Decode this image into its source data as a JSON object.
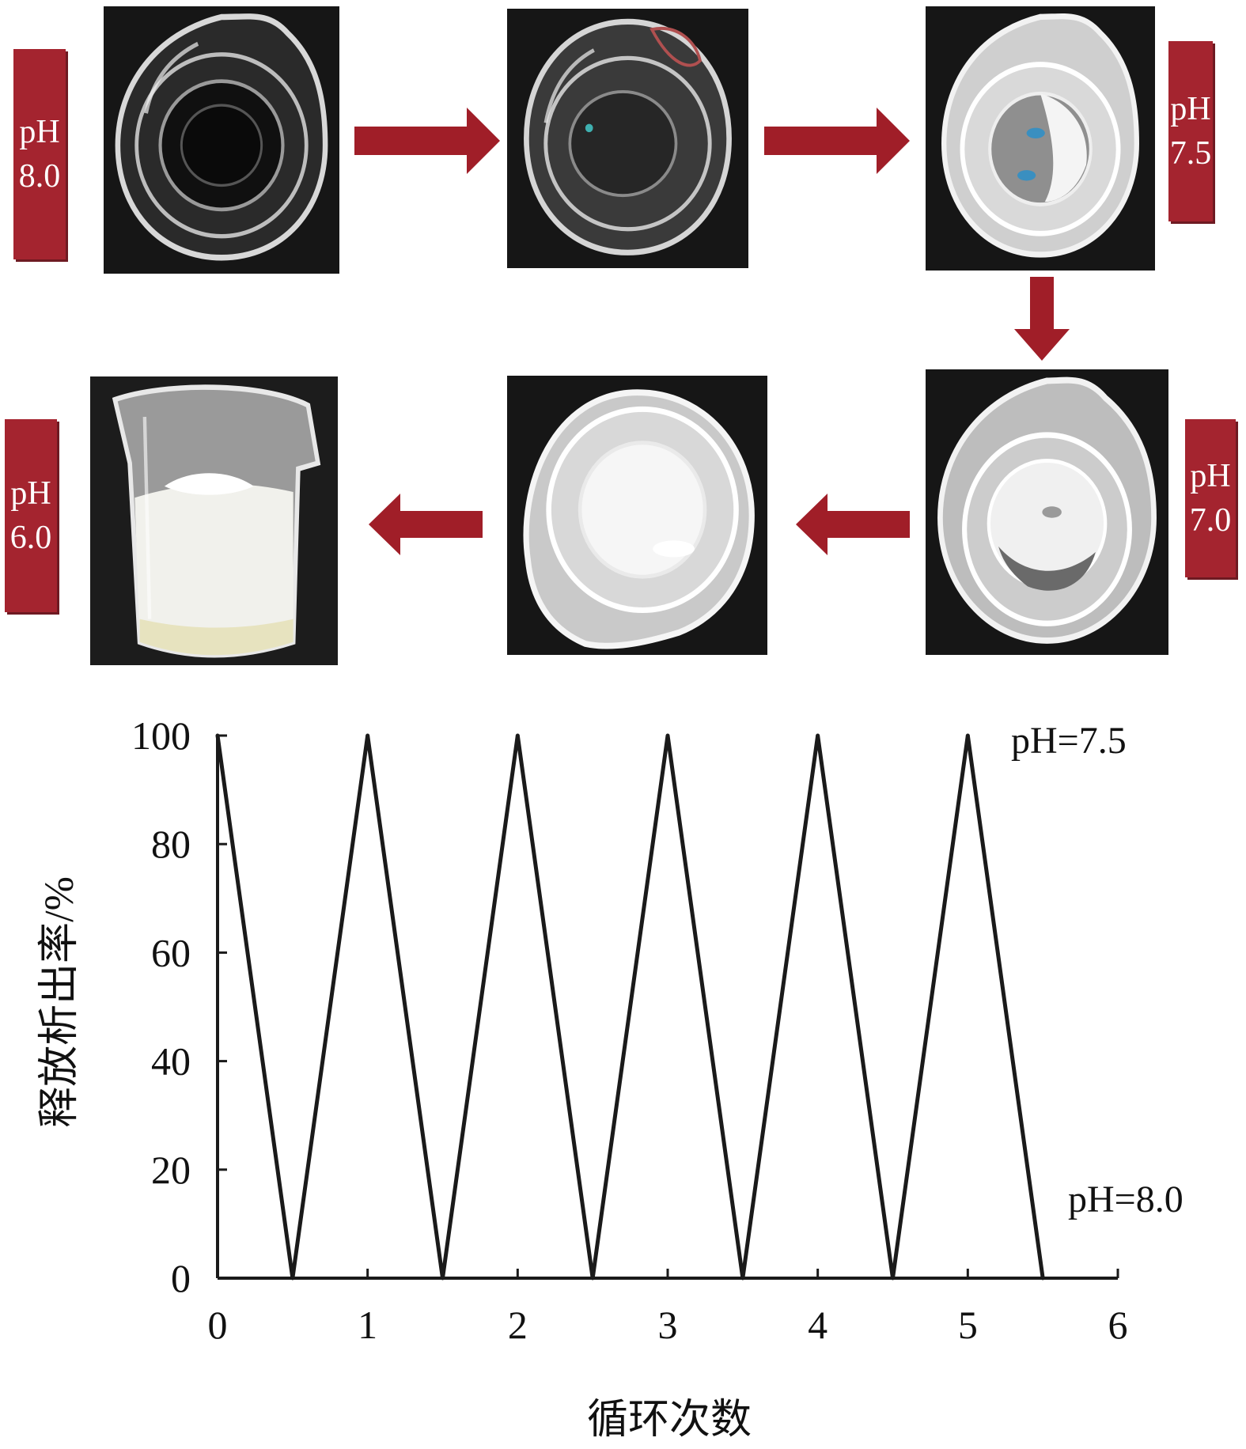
{
  "panels": {
    "labels": [
      {
        "line1": "pH",
        "line2": "8.0"
      },
      {
        "line1": "pH",
        "line2": "7.5"
      },
      {
        "line1": "pH",
        "line2": "7.0"
      },
      {
        "line1": "pH",
        "line2": "6.0"
      }
    ],
    "label_color": "#a4242f",
    "arrow_color": "#a01e28"
  },
  "chart_data": {
    "type": "line",
    "xlabel": "循环次数",
    "ylabel": "释放析出率/%",
    "xlim": [
      0,
      6
    ],
    "ylim": [
      0,
      100
    ],
    "x_ticks": [
      0,
      1,
      2,
      3,
      4,
      5,
      6
    ],
    "y_ticks": [
      0,
      20,
      40,
      60,
      80,
      100
    ],
    "x_tick_labels": [
      "0",
      "1",
      "2",
      "3",
      "4",
      "5",
      "6"
    ],
    "y_tick_labels": [
      "0",
      "20",
      "40",
      "60",
      "80",
      "100"
    ],
    "grid": false,
    "annotations": [
      {
        "text": "pH=7.5",
        "position": "top-right"
      },
      {
        "text": "pH=8.0",
        "position": "bottom-right"
      }
    ],
    "series": [
      {
        "x": [
          0,
          0.5,
          1,
          1.5,
          2,
          2.5,
          3,
          3.5,
          4,
          4.5,
          5,
          5.5
        ],
        "y": [
          100,
          0,
          100,
          0,
          100,
          0,
          100,
          0,
          100,
          0,
          100,
          0
        ],
        "color": "#1a1a1a"
      }
    ]
  }
}
